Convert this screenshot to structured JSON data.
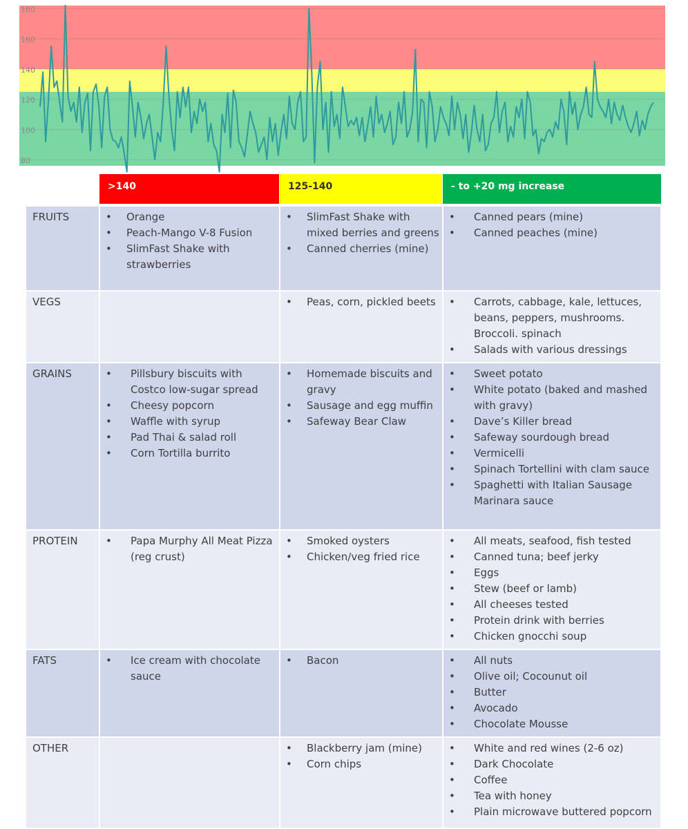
{
  "chart_data": {
    "type": "line",
    "ylim": [
      76,
      182
    ],
    "yticks": [
      80,
      100,
      120,
      140,
      160,
      180
    ],
    "bands": [
      {
        "from": 76,
        "to": 125,
        "color": "#7ad6a3"
      },
      {
        "from": 125,
        "to": 140,
        "color": "#fdfd7a"
      },
      {
        "from": 140,
        "to": 182,
        "color": "#fe8a8a"
      }
    ],
    "line_color": "#2e9aa0",
    "series": [
      {
        "values": [
          115,
          138,
          92,
          120,
          155,
          128,
          132,
          118,
          105,
          182,
          122,
          112,
          118,
          105,
          128,
          98,
          118,
          124,
          86,
          125,
          130,
          115,
          88,
          122,
          128,
          100,
          93,
          92,
          88,
          95,
          85,
          72,
          132,
          115,
          95,
          118,
          108,
          94,
          104,
          110,
          95,
          80,
          98,
          92,
          118,
          155,
          122,
          100,
          86,
          125,
          108,
          128,
          115,
          128,
          98,
          112,
          104,
          120,
          112,
          118,
          92,
          104,
          90,
          86,
          72,
          110,
          98,
          124,
          88,
          126,
          118,
          92,
          88,
          82,
          97,
          112,
          104,
          98,
          85,
          90,
          95,
          80,
          108,
          92,
          104,
          83,
          98,
          110,
          94,
          122,
          104,
          100,
          118,
          125,
          92,
          95,
          180,
          138,
          78,
          128,
          145,
          100,
          118,
          85,
          125,
          102,
          110,
          94,
          128,
          115,
          102,
          106,
          103,
          108,
          96,
          108,
          92,
          103,
          115,
          95,
          122,
          104,
          110,
          98,
          104,
          112,
          90,
          95,
          118,
          104,
          125,
          95,
          100,
          112,
          153,
          92,
          120,
          118,
          88,
          125,
          115,
          92,
          100,
          115,
          108,
          104,
          96,
          122,
          100,
          118,
          110,
          94,
          110,
          85,
          98,
          116,
          100,
          92,
          110,
          86,
          90,
          104,
          108,
          125,
          98,
          112,
          118,
          92,
          102,
          95,
          115,
          108,
          120,
          94,
          125,
          118,
          96,
          100,
          84,
          94,
          92,
          98,
          100,
          95,
          105,
          100,
          120,
          112,
          90,
          125,
          110,
          118,
          100,
          110,
          115,
          128,
          110,
          108,
          145,
          120,
          115,
          112,
          108,
          120,
          104,
          118,
          110,
          106,
          116,
          108,
          102,
          98,
          104,
          112,
          96,
          106,
          100,
          110,
          115,
          118
        ]
      }
    ]
  },
  "header": {
    "high": ">140",
    "mid": "125-140",
    "ok": "- to +20 mg increase"
  },
  "rows": [
    {
      "category": "FRUITS",
      "high": [
        "Orange",
        "Peach-Mango V-8 Fusion",
        "SlimFast Shake with strawberries"
      ],
      "mid": [
        "SlimFast Shake with mixed berries and greens",
        "Canned cherries (mine)"
      ],
      "ok": [
        "Canned pears (mine)",
        "Canned peaches (mine)"
      ]
    },
    {
      "category": "VEGS",
      "high": [],
      "mid": [
        "Peas, corn, pickled beets"
      ],
      "ok": [
        "Carrots, cabbage, kale, lettuces, beans, peppers, mushrooms. Broccoli. spinach",
        "Salads with various dressings"
      ]
    },
    {
      "category": "GRAINS",
      "high": [
        "Pillsbury biscuits with Costco low-sugar spread",
        "Cheesy popcorn",
        "Waffle with syrup",
        "Pad Thai & salad roll",
        "Corn Tortilla burrito"
      ],
      "mid": [
        "Homemade biscuits and gravy",
        "Sausage and egg muffin",
        "Safeway Bear Claw"
      ],
      "ok": [
        "Sweet potato",
        "White potato (baked and mashed with gravy)",
        "Dave’s Killer bread",
        "Safeway sourdough bread",
        "Vermicelli",
        "Spinach Tortellini with clam sauce",
        "Spaghetti with Italian Sausage Marinara sauce"
      ]
    },
    {
      "category": "PROTEIN",
      "high": [
        "Papa Murphy All Meat Pizza (reg crust)"
      ],
      "mid": [
        "Smoked oysters",
        "Chicken/veg fried rice"
      ],
      "ok": [
        "All meats, seafood, fish tested",
        "Canned tuna; beef jerky",
        "Eggs",
        "Stew (beef or lamb)",
        "All cheeses tested",
        "Protein drink with berries",
        "Chicken gnocchi soup"
      ]
    },
    {
      "category": "FATS",
      "high": [
        "Ice cream with chocolate sauce"
      ],
      "mid": [
        "Bacon"
      ],
      "ok": [
        "All nuts",
        "Olive oil; Cocounut oil",
        "Butter",
        "Avocado",
        "Chocolate Mousse"
      ]
    },
    {
      "category": "OTHER",
      "high": [],
      "mid": [
        "Blackberry jam (mine)",
        "Corn chips"
      ],
      "ok": [
        "White and red wines (2-6 oz)",
        "Dark Chocolate",
        "Coffee",
        "Tea with honey",
        "Plain microwave buttered popcorn"
      ]
    }
  ]
}
